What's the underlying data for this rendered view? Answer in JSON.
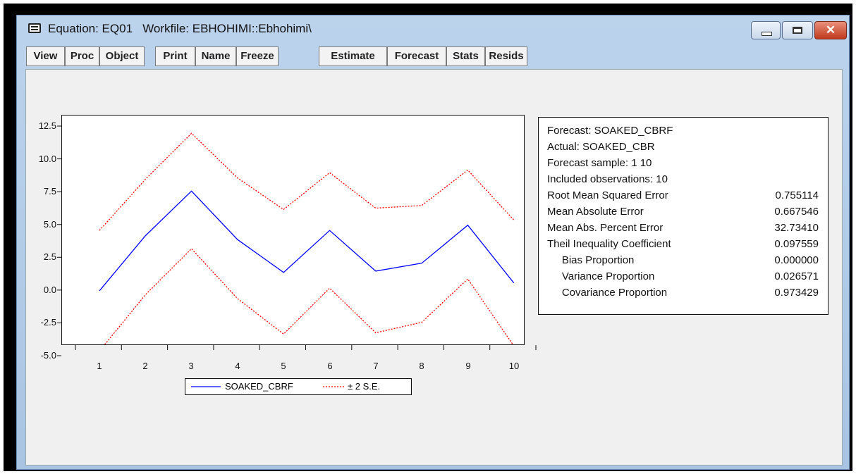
{
  "window": {
    "title": "Equation: EQ01   Workfile: EBHOHIMI::Ebhohimi\\",
    "close_symbol": "✕"
  },
  "toolbar": {
    "buttons": [
      "View",
      "Proc",
      "Object",
      "Print",
      "Name",
      "Freeze",
      "Estimate",
      "Forecast",
      "Stats",
      "Resids"
    ]
  },
  "chart_data": {
    "type": "line",
    "x": [
      1,
      2,
      3,
      4,
      5,
      6,
      7,
      8,
      9,
      10
    ],
    "series": [
      {
        "name": "SOAKED_CBRF",
        "color": "#0000ff",
        "style": "solid",
        "values": [
          0.0,
          4.2,
          7.6,
          3.9,
          1.4,
          4.6,
          1.5,
          2.1,
          5.0,
          0.6
        ]
      },
      {
        "name": "± 2 S.E.",
        "color": "#ff0000",
        "style": "dotted",
        "values": [
          4.6,
          8.5,
          12.0,
          8.6,
          6.2,
          9.0,
          6.3,
          6.5,
          9.2,
          5.4
        ]
      },
      {
        "name": "",
        "color": "#ff0000",
        "style": "dotted",
        "values": [
          -4.6,
          -0.3,
          3.2,
          -0.6,
          -3.3,
          0.2,
          -3.2,
          -2.4,
          0.9,
          -4.2
        ]
      }
    ],
    "yticks": [
      "12.5",
      "10.0",
      "7.5",
      "5.0",
      "2.5",
      "0.0",
      "-2.5",
      "-5.0"
    ],
    "xticks": [
      "1",
      "2",
      "3",
      "4",
      "5",
      "6",
      "7",
      "8",
      "9",
      "10"
    ],
    "ylim": [
      -5.0,
      12.5
    ],
    "legend": {
      "solid_label": "SOAKED_CBRF",
      "dotted_label": "± 2 S.E.",
      "placement": "bottom-center"
    }
  },
  "stats": {
    "header": [
      "Forecast: SOAKED_CBRF",
      "Actual: SOAKED_CBR",
      "Forecast sample: 1 10",
      "Included observations: 10"
    ],
    "rows": [
      {
        "label": "Root Mean Squared Error",
        "value": "0.755114"
      },
      {
        "label": "Mean Absolute Error",
        "value": "0.667546"
      },
      {
        "label": "Mean Abs. Percent Error",
        "value": "32.73410"
      },
      {
        "label": "Theil Inequality Coefficient",
        "value": "0.097559"
      },
      {
        "label": "     Bias Proportion",
        "value": "0.000000"
      },
      {
        "label": "     Variance Proportion",
        "value": "0.026571"
      },
      {
        "label": "     Covariance Proportion",
        "value": "0.973429"
      }
    ]
  }
}
